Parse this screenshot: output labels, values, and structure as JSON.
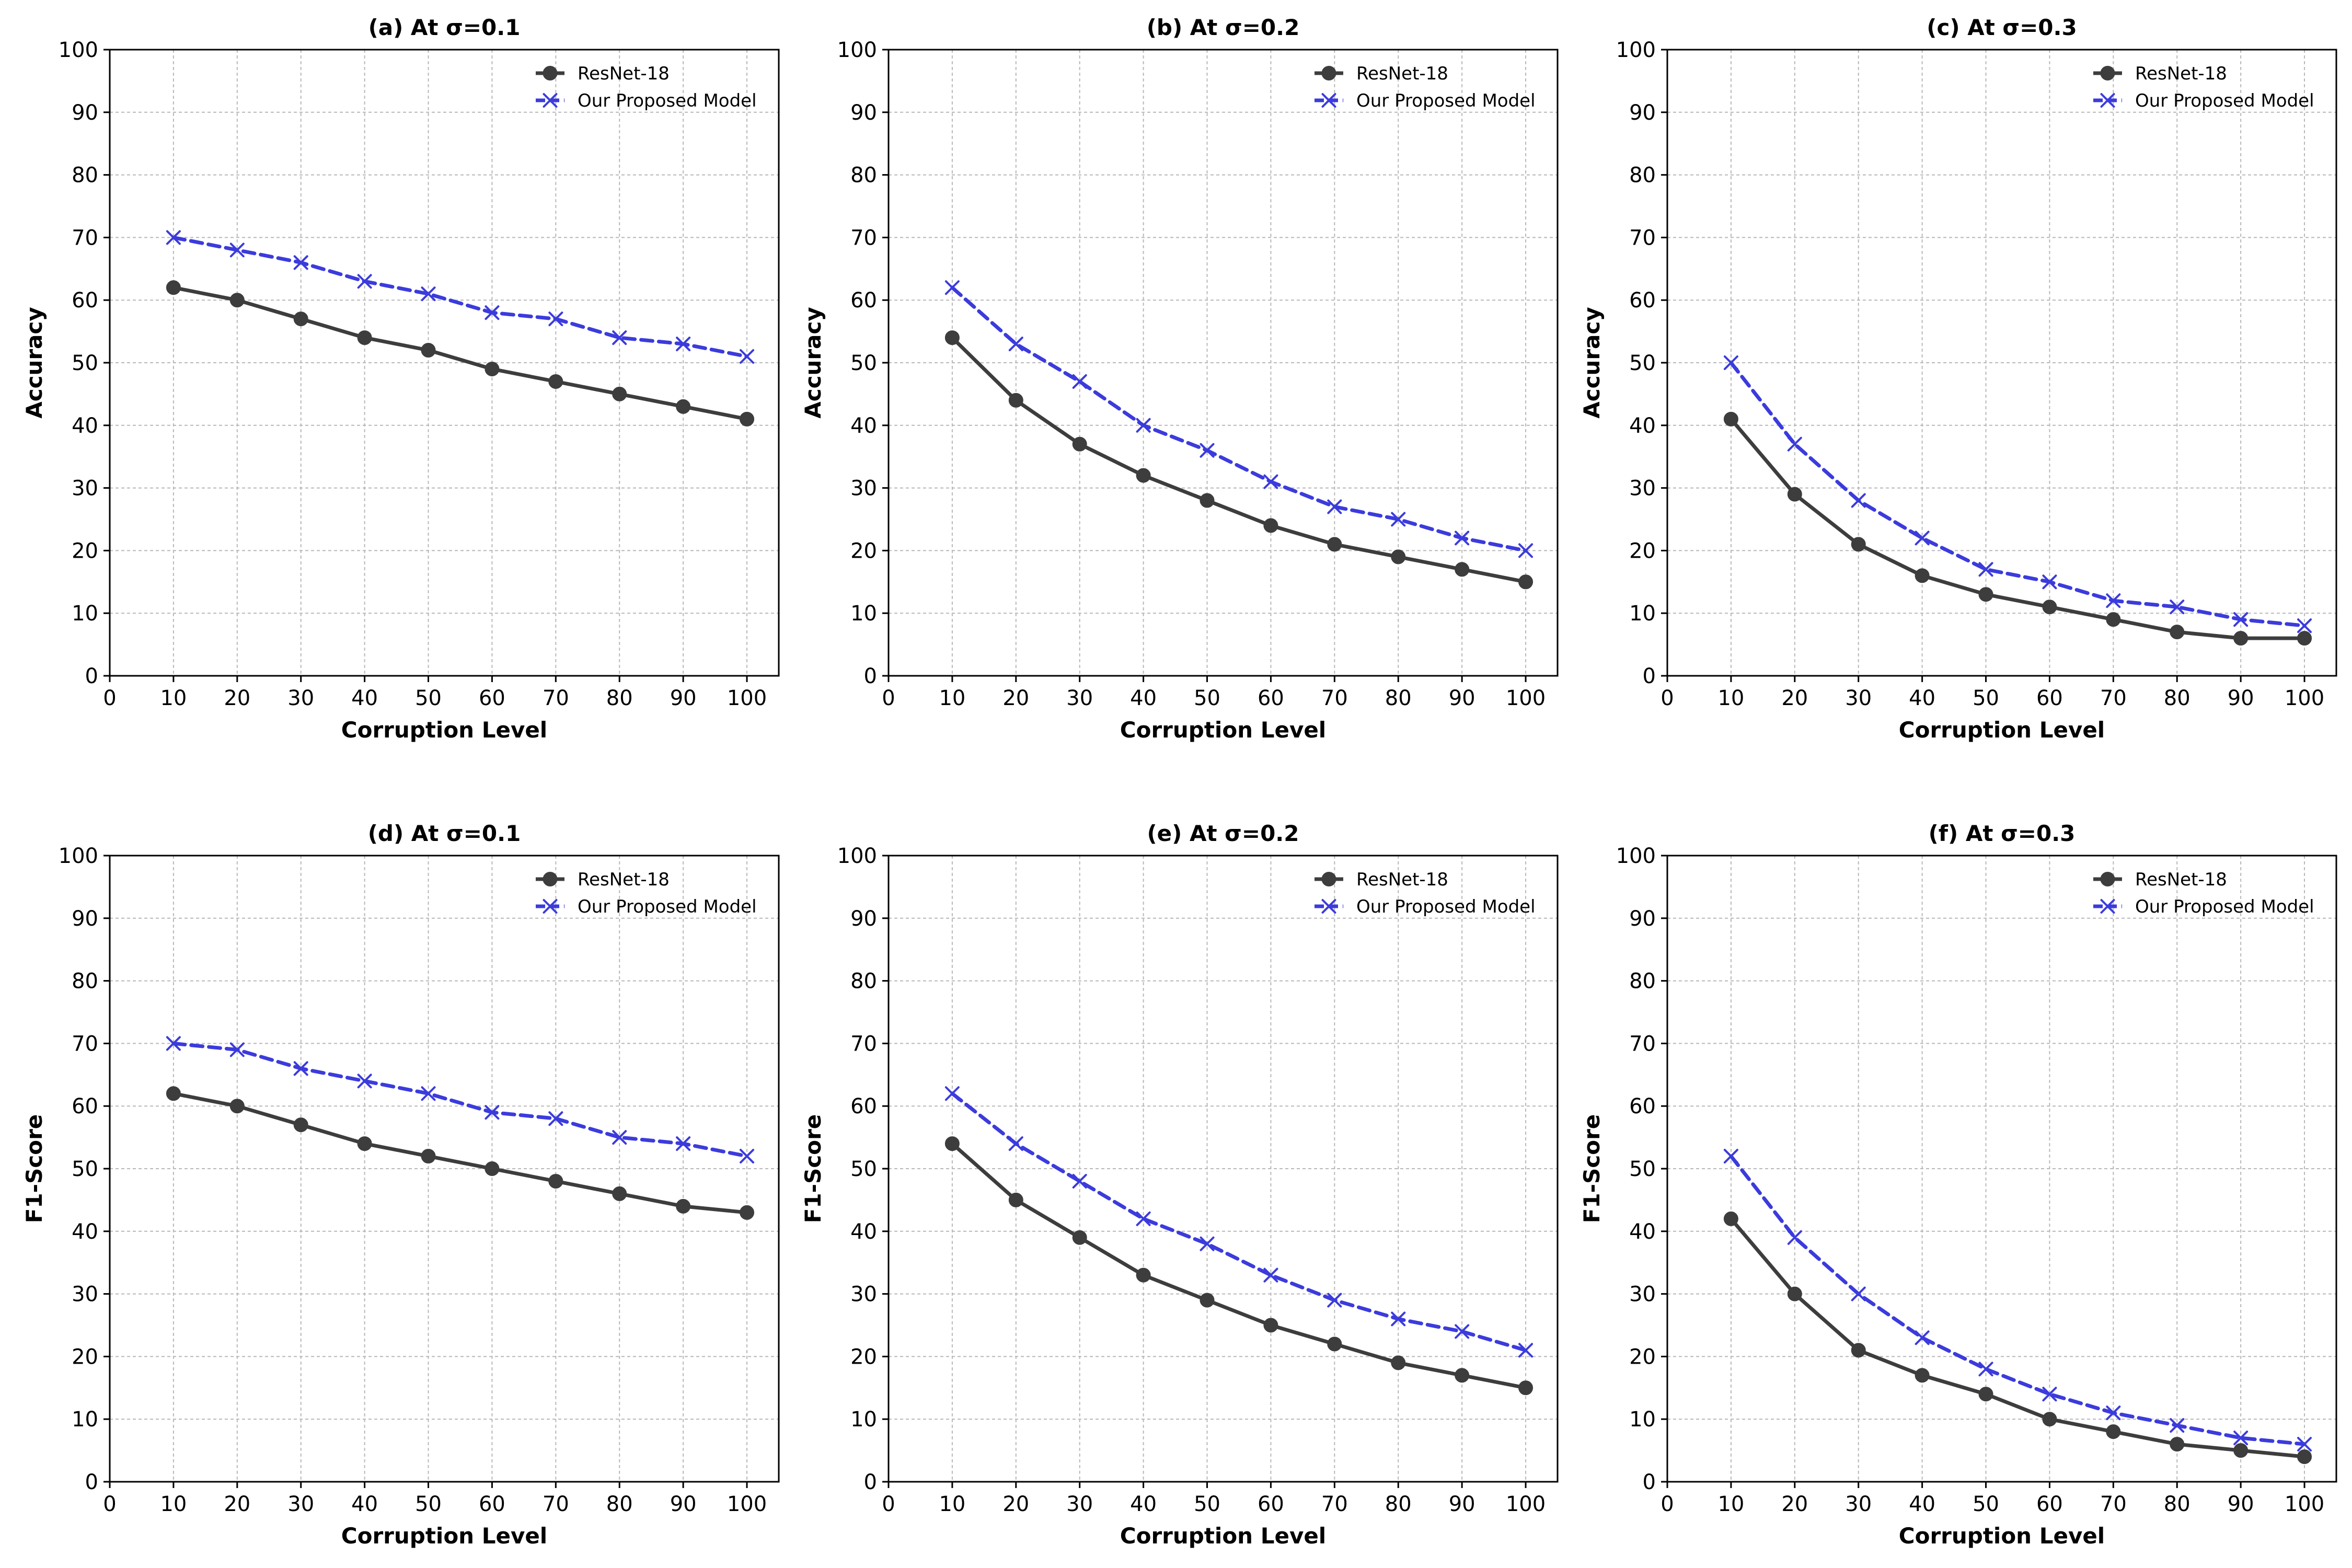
{
  "chart_data": [
    {
      "type": "line",
      "title": "(a) At σ=0.1",
      "xlabel": "Corruption Level",
      "ylabel": "Accuracy",
      "xlim": [
        0,
        105
      ],
      "ylim": [
        0,
        100
      ],
      "xticks": [
        0,
        10,
        20,
        30,
        40,
        50,
        60,
        70,
        80,
        90,
        100
      ],
      "yticks": [
        0,
        10,
        20,
        30,
        40,
        50,
        60,
        70,
        80,
        90,
        100
      ],
      "grid": true,
      "legend": "top-right",
      "x": [
        10,
        20,
        30,
        40,
        50,
        60,
        70,
        80,
        90,
        100
      ],
      "series": [
        {
          "name": "ResNet-18",
          "values": [
            62,
            60,
            57,
            54,
            52,
            49,
            47,
            45,
            43,
            41
          ],
          "color": "#3d3d3d",
          "marker": "circle",
          "line": "solid"
        },
        {
          "name": "Our Proposed Model",
          "values": [
            70,
            68,
            66,
            63,
            61,
            58,
            57,
            54,
            53,
            51
          ],
          "color": "#3b3bdd",
          "marker": "x",
          "line": "dashed"
        }
      ]
    },
    {
      "type": "line",
      "title": "(b) At σ=0.2",
      "xlabel": "Corruption Level",
      "ylabel": "Accuracy",
      "xlim": [
        0,
        105
      ],
      "ylim": [
        0,
        100
      ],
      "xticks": [
        0,
        10,
        20,
        30,
        40,
        50,
        60,
        70,
        80,
        90,
        100
      ],
      "yticks": [
        0,
        10,
        20,
        30,
        40,
        50,
        60,
        70,
        80,
        90,
        100
      ],
      "grid": true,
      "legend": "top-right",
      "x": [
        10,
        20,
        30,
        40,
        50,
        60,
        70,
        80,
        90,
        100
      ],
      "series": [
        {
          "name": "ResNet-18",
          "values": [
            54,
            44,
            37,
            32,
            28,
            24,
            21,
            19,
            17,
            15
          ],
          "color": "#3d3d3d",
          "marker": "circle",
          "line": "solid"
        },
        {
          "name": "Our Proposed Model",
          "values": [
            62,
            53,
            47,
            40,
            36,
            31,
            27,
            25,
            22,
            20
          ],
          "color": "#3b3bdd",
          "marker": "x",
          "line": "dashed"
        }
      ]
    },
    {
      "type": "line",
      "title": "(c) At σ=0.3",
      "xlabel": "Corruption Level",
      "ylabel": "Accuracy",
      "xlim": [
        0,
        105
      ],
      "ylim": [
        0,
        100
      ],
      "xticks": [
        0,
        10,
        20,
        30,
        40,
        50,
        60,
        70,
        80,
        90,
        100
      ],
      "yticks": [
        0,
        10,
        20,
        30,
        40,
        50,
        60,
        70,
        80,
        90,
        100
      ],
      "grid": true,
      "legend": "top-right",
      "x": [
        10,
        20,
        30,
        40,
        50,
        60,
        70,
        80,
        90,
        100
      ],
      "series": [
        {
          "name": "ResNet-18",
          "values": [
            41,
            29,
            21,
            16,
            13,
            11,
            9,
            7,
            6,
            6
          ],
          "color": "#3d3d3d",
          "marker": "circle",
          "line": "solid"
        },
        {
          "name": "Our Proposed Model",
          "values": [
            50,
            37,
            28,
            22,
            17,
            15,
            12,
            11,
            9,
            8
          ],
          "color": "#3b3bdd",
          "marker": "x",
          "line": "dashed"
        }
      ]
    },
    {
      "type": "line",
      "title": "(d) At σ=0.1",
      "xlabel": "Corruption Level",
      "ylabel": "F1-Score",
      "xlim": [
        0,
        105
      ],
      "ylim": [
        0,
        100
      ],
      "xticks": [
        0,
        10,
        20,
        30,
        40,
        50,
        60,
        70,
        80,
        90,
        100
      ],
      "yticks": [
        0,
        10,
        20,
        30,
        40,
        50,
        60,
        70,
        80,
        90,
        100
      ],
      "grid": true,
      "legend": "top-right",
      "x": [
        10,
        20,
        30,
        40,
        50,
        60,
        70,
        80,
        90,
        100
      ],
      "series": [
        {
          "name": "ResNet-18",
          "values": [
            62,
            60,
            57,
            54,
            52,
            50,
            48,
            46,
            44,
            43
          ],
          "color": "#3d3d3d",
          "marker": "circle",
          "line": "solid"
        },
        {
          "name": "Our Proposed Model",
          "values": [
            70,
            69,
            66,
            64,
            62,
            59,
            58,
            55,
            54,
            52
          ],
          "color": "#3b3bdd",
          "marker": "x",
          "line": "dashed"
        }
      ]
    },
    {
      "type": "line",
      "title": "(e) At σ=0.2",
      "xlabel": "Corruption Level",
      "ylabel": "F1-Score",
      "xlim": [
        0,
        105
      ],
      "ylim": [
        0,
        100
      ],
      "xticks": [
        0,
        10,
        20,
        30,
        40,
        50,
        60,
        70,
        80,
        90,
        100
      ],
      "yticks": [
        0,
        10,
        20,
        30,
        40,
        50,
        60,
        70,
        80,
        90,
        100
      ],
      "grid": true,
      "legend": "top-right",
      "x": [
        10,
        20,
        30,
        40,
        50,
        60,
        70,
        80,
        90,
        100
      ],
      "series": [
        {
          "name": "ResNet-18",
          "values": [
            54,
            45,
            39,
            33,
            29,
            25,
            22,
            19,
            17,
            15
          ],
          "color": "#3d3d3d",
          "marker": "circle",
          "line": "solid"
        },
        {
          "name": "Our Proposed Model",
          "values": [
            62,
            54,
            48,
            42,
            38,
            33,
            29,
            26,
            24,
            21
          ],
          "color": "#3b3bdd",
          "marker": "x",
          "line": "dashed"
        }
      ]
    },
    {
      "type": "line",
      "title": "(f) At σ=0.3",
      "xlabel": "Corruption Level",
      "ylabel": "F1-Score",
      "xlim": [
        0,
        105
      ],
      "ylim": [
        0,
        100
      ],
      "xticks": [
        0,
        10,
        20,
        30,
        40,
        50,
        60,
        70,
        80,
        90,
        100
      ],
      "yticks": [
        0,
        10,
        20,
        30,
        40,
        50,
        60,
        70,
        80,
        90,
        100
      ],
      "grid": true,
      "legend": "top-right",
      "x": [
        10,
        20,
        30,
        40,
        50,
        60,
        70,
        80,
        90,
        100
      ],
      "series": [
        {
          "name": "ResNet-18",
          "values": [
            42,
            30,
            21,
            17,
            14,
            10,
            8,
            6,
            5,
            4
          ],
          "color": "#3d3d3d",
          "marker": "circle",
          "line": "solid"
        },
        {
          "name": "Our Proposed Model",
          "values": [
            52,
            39,
            30,
            23,
            18,
            14,
            11,
            9,
            7,
            6
          ],
          "color": "#3b3bdd",
          "marker": "x",
          "line": "dashed"
        }
      ]
    }
  ]
}
